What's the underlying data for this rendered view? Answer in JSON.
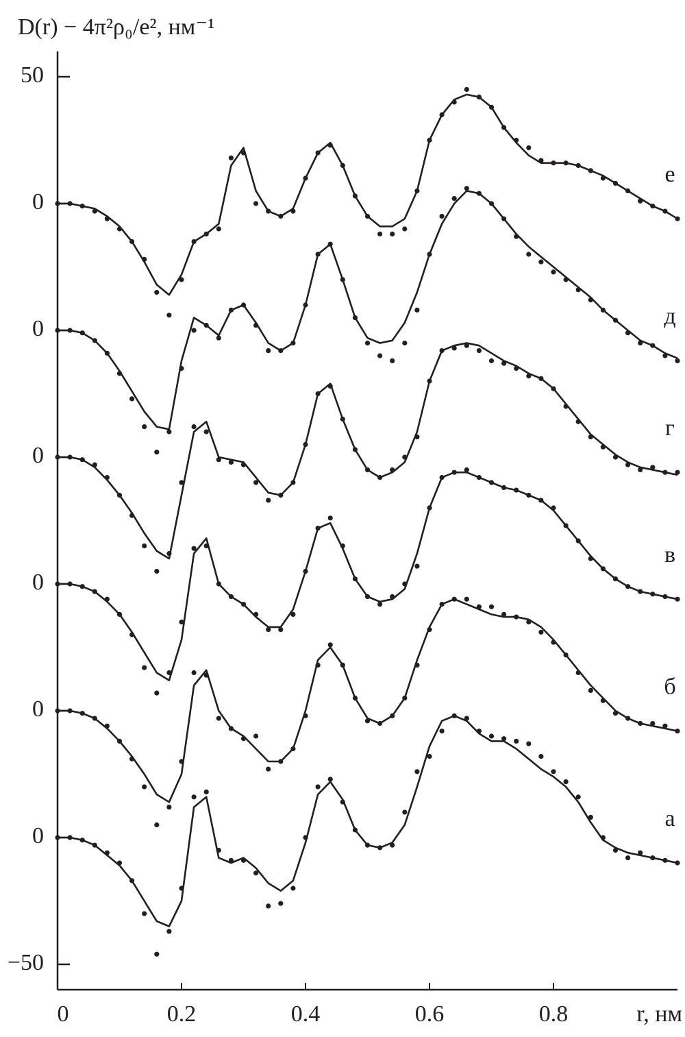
{
  "chart_data": {
    "type": "line",
    "y_label": "D(r) − 4π²ρ₀/e², нм⁻¹",
    "x_label": "r, нм",
    "color": "#231f20",
    "xlim": [
      0,
      1
    ],
    "xticks": [
      0,
      0.2,
      0.4,
      0.6,
      0.8
    ],
    "ylim": [
      -60,
      310
    ],
    "yticks": [
      {
        "value": 300,
        "label": "50"
      },
      {
        "value": 250,
        "label": "0"
      },
      {
        "value": 200,
        "label": "0"
      },
      {
        "value": 150,
        "label": "0"
      },
      {
        "value": 100,
        "label": "0"
      },
      {
        "value": 50,
        "label": "0"
      },
      0,
      {
        "value": -50,
        "label": "−50"
      }
    ],
    "x": [
      0,
      0.02,
      0.04,
      0.06,
      0.08,
      0.1,
      0.12,
      0.14,
      0.16,
      0.18,
      0.2,
      0.22,
      0.24,
      0.26,
      0.28,
      0.3,
      0.32,
      0.34,
      0.36,
      0.38,
      0.4,
      0.42,
      0.44,
      0.46,
      0.48,
      0.5,
      0.52,
      0.54,
      0.56,
      0.58,
      0.6,
      0.62,
      0.64,
      0.66,
      0.68,
      0.7,
      0.72,
      0.74,
      0.76,
      0.78,
      0.8,
      0.82,
      0.84,
      0.86,
      0.88,
      0.9,
      0.92,
      0.94,
      0.96,
      0.98,
      1
    ],
    "series": [
      {
        "name": "а",
        "values": [
          0,
          0,
          -1,
          -3,
          -6,
          -10,
          -17,
          -30,
          -46,
          -37,
          -20,
          16,
          18,
          -5,
          -9,
          -9,
          -14,
          -27,
          -26,
          -20,
          0,
          20,
          23,
          14,
          3,
          -3,
          -4,
          -3,
          10,
          26,
          32,
          42,
          48,
          47,
          42,
          40,
          39,
          38,
          37,
          32,
          26,
          22,
          16,
          8,
          0,
          -5,
          -8,
          -6,
          -8,
          -9,
          -10
        ],
        "fit": [
          0,
          0,
          -1,
          -3,
          -7,
          -11,
          -17,
          -25,
          -33,
          -35,
          -25,
          12,
          16,
          -8,
          -10,
          -8,
          -12,
          -18,
          -21,
          -17,
          -2,
          17,
          22,
          15,
          3,
          -3,
          -4,
          -2,
          5,
          20,
          36,
          46,
          48,
          46,
          41,
          38,
          38,
          35,
          31,
          27,
          24,
          20,
          14,
          6,
          -1,
          -4,
          -6,
          -7,
          -8,
          -9,
          -10
        ]
      },
      {
        "name": "б",
        "values": [
          50,
          50,
          49,
          47,
          44,
          38,
          31,
          20,
          5,
          12,
          30,
          65,
          64,
          47,
          43,
          39,
          40,
          27,
          30,
          35,
          48,
          68,
          76,
          68,
          55,
          46,
          45,
          48,
          55,
          68,
          82,
          92,
          94,
          94,
          91,
          91,
          88,
          87,
          85,
          81,
          77,
          72,
          65,
          58,
          54,
          49,
          47,
          45,
          45,
          44,
          42
        ],
        "fit": [
          50,
          50,
          49,
          47,
          43,
          38,
          32,
          25,
          17,
          14,
          25,
          60,
          66,
          50,
          43,
          40,
          35,
          30,
          30,
          35,
          50,
          70,
          75,
          68,
          55,
          47,
          45,
          48,
          55,
          70,
          83,
          92,
          94,
          92,
          90,
          88,
          87,
          87,
          86,
          83,
          78,
          72,
          66,
          60,
          55,
          50,
          47,
          45,
          44,
          43,
          42
        ]
      },
      {
        "name": "в",
        "values": [
          100,
          100,
          99,
          97,
          94,
          88,
          80,
          67,
          57,
          65,
          85,
          114,
          115,
          100,
          95,
          92,
          88,
          82,
          82,
          88,
          105,
          122,
          126,
          115,
          102,
          95,
          92,
          95,
          100,
          107,
          130,
          142,
          144,
          145,
          142,
          140,
          138,
          137,
          135,
          133,
          130,
          123,
          117,
          110,
          106,
          102,
          99,
          97,
          96,
          95,
          94
        ],
        "fit": [
          100,
          100,
          99,
          97,
          93,
          88,
          81,
          73,
          65,
          62,
          78,
          112,
          118,
          100,
          95,
          92,
          87,
          83,
          83,
          90,
          105,
          122,
          124,
          114,
          102,
          95,
          93,
          94,
          98,
          112,
          130,
          142,
          144,
          144,
          142,
          140,
          138,
          137,
          135,
          133,
          129,
          123,
          117,
          111,
          106,
          102,
          99,
          97,
          96,
          95,
          94
        ]
      },
      {
        "name": "г",
        "values": [
          150,
          150,
          149,
          147,
          142,
          135,
          127,
          115,
          105,
          112,
          140,
          162,
          160,
          149,
          148,
          147,
          140,
          133,
          135,
          140,
          155,
          175,
          178,
          165,
          153,
          145,
          142,
          145,
          150,
          158,
          180,
          192,
          193,
          194,
          192,
          188,
          187,
          185,
          182,
          181,
          177,
          170,
          164,
          158,
          154,
          150,
          147,
          145,
          146,
          144,
          144
        ],
        "fit": [
          150,
          150,
          149,
          146,
          141,
          135,
          128,
          120,
          113,
          110,
          135,
          160,
          164,
          150,
          149,
          148,
          142,
          136,
          135,
          140,
          155,
          175,
          179,
          165,
          153,
          145,
          142,
          144,
          148,
          160,
          180,
          192,
          194,
          195,
          194,
          191,
          188,
          186,
          183,
          181,
          177,
          171,
          165,
          159,
          155,
          151,
          148,
          146,
          145,
          144,
          143
        ]
      },
      {
        "name": "д",
        "values": [
          200,
          200,
          199,
          196,
          191,
          183,
          173,
          162,
          152,
          160,
          185,
          200,
          202,
          197,
          208,
          210,
          202,
          192,
          192,
          195,
          210,
          230,
          234,
          220,
          205,
          195,
          190,
          188,
          195,
          208,
          230,
          245,
          252,
          256,
          254,
          250,
          244,
          237,
          230,
          227,
          223,
          220,
          216,
          212,
          208,
          204,
          199,
          195,
          194,
          190,
          188
        ],
        "fit": [
          200,
          200,
          199,
          196,
          191,
          184,
          176,
          168,
          162,
          161,
          188,
          205,
          202,
          198,
          208,
          210,
          203,
          195,
          192,
          195,
          210,
          230,
          234,
          220,
          205,
          197,
          195,
          196,
          203,
          215,
          230,
          242,
          250,
          255,
          254,
          250,
          244,
          238,
          233,
          229,
          225,
          221,
          217,
          213,
          208,
          204,
          200,
          196,
          194,
          191,
          189
        ]
      },
      {
        "name": "е",
        "values": [
          250,
          250,
          249,
          247,
          244,
          240,
          235,
          228,
          215,
          206,
          220,
          235,
          238,
          240,
          268,
          270,
          250,
          247,
          245,
          247,
          260,
          270,
          273,
          265,
          253,
          245,
          238,
          238,
          240,
          255,
          275,
          285,
          290,
          295,
          292,
          288,
          280,
          275,
          272,
          267,
          266,
          266,
          265,
          263,
          260,
          258,
          255,
          251,
          249,
          247,
          244
        ],
        "fit": [
          250,
          250,
          249,
          248,
          245,
          241,
          235,
          227,
          218,
          214,
          222,
          235,
          238,
          242,
          265,
          272,
          255,
          247,
          245,
          248,
          260,
          270,
          274,
          265,
          253,
          245,
          241,
          241,
          244,
          255,
          275,
          285,
          291,
          293,
          292,
          288,
          280,
          274,
          269,
          266,
          266,
          266,
          265,
          263,
          261,
          258,
          255,
          252,
          249,
          247,
          244
        ]
      }
    ]
  }
}
